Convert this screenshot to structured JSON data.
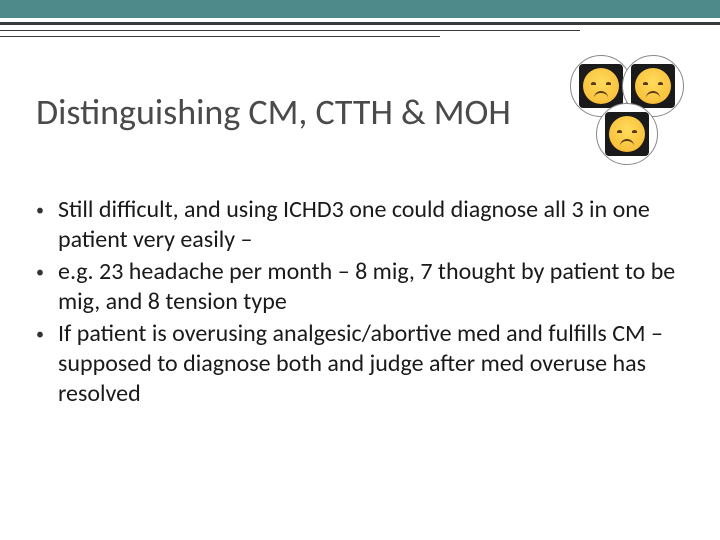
{
  "colors": {
    "teal": "#4f8a8b",
    "dark_line": "#3a3a3a",
    "title_color": "#4a4a4a",
    "body_color": "#1a1a1a",
    "emoji_bg": "#1a1a1a",
    "emoji_face": "#f9c23c"
  },
  "title": "Distinguishing CM, CTTH & MOH",
  "title_fontsize": 36,
  "body_fontsize": 24,
  "bullets": [
    "Still difficult, and using ICHD3 one could diagnose all 3 in one patient very easily –",
    "e.g. 23 headache per month – 8 mig, 7 thought by patient to be mig, and 8 tension type",
    "If patient is overusing analgesic/abortive med and fulfills CM – supposed to diagnose both and judge after med overuse has resolved"
  ],
  "emoji": {
    "name": "pensive-face",
    "count": 3
  }
}
